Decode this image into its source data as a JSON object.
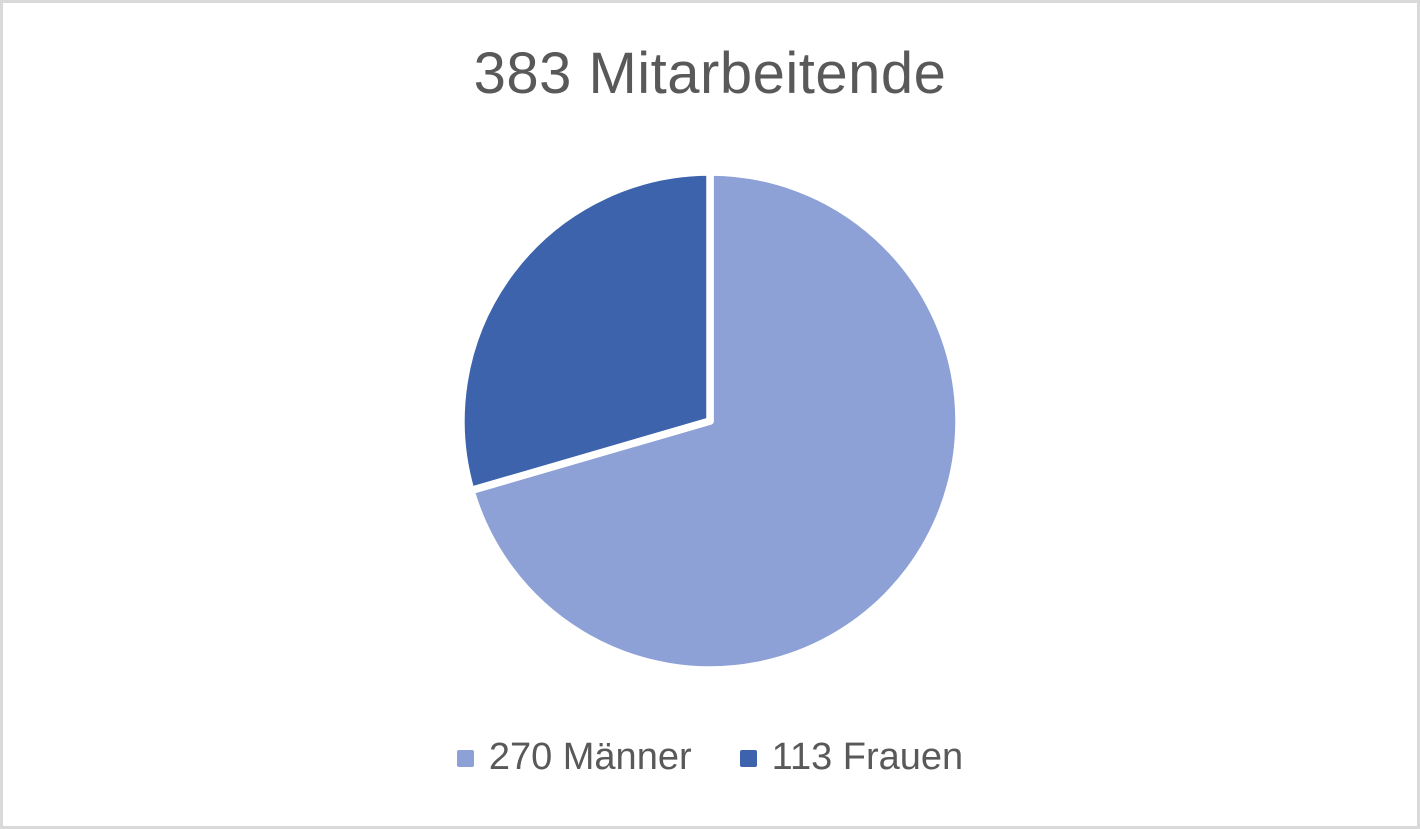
{
  "frame": {
    "background": "#FFFFFF",
    "border_color": "#D9D9D9"
  },
  "chart_data": {
    "type": "pie",
    "title": "383 Mitarbeitende",
    "total": 383,
    "categories": [
      "270 Männer",
      "113 Frauen"
    ],
    "values": [
      270,
      113
    ],
    "colors": [
      "#8DA1D6",
      "#3C63AC"
    ],
    "slice_border_color": "#FFFFFF",
    "start_angle": 0,
    "direction": "clockwise",
    "legend_position": "bottom",
    "text_color": "#595959",
    "legend": [
      {
        "label": "270 Männer",
        "swatch_color": "#8DA1D6"
      },
      {
        "label": "113 Frauen",
        "swatch_color": "#3C63AC"
      }
    ]
  }
}
